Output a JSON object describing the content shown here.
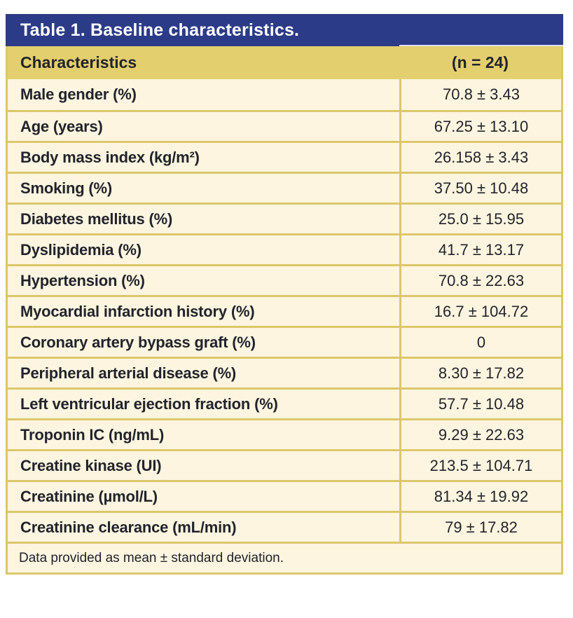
{
  "table": {
    "title": "Table 1. Baseline characteristics.",
    "header": {
      "characteristics_label": "Characteristics",
      "n_label": "(n = 24)"
    },
    "rows": [
      {
        "label": "Male gender (%)",
        "value": "70.8 ± 3.43"
      },
      {
        "label": "Age (years)",
        "value": "67.25 ± 13.10"
      },
      {
        "label": "Body mass index (kg/m²)",
        "value": "26.158 ± 3.43"
      },
      {
        "label": "Smoking (%)",
        "value": "37.50 ± 10.48"
      },
      {
        "label": "Diabetes mellitus (%)",
        "value": "25.0 ± 15.95"
      },
      {
        "label": "Dyslipidemia (%)",
        "value": "41.7 ± 13.17"
      },
      {
        "label": "Hypertension (%)",
        "value": "70.8 ± 22.63"
      },
      {
        "label": "Myocardial infarction history (%)",
        "value": "16.7 ± 104.72"
      },
      {
        "label": "Coronary artery bypass graft (%)",
        "value": "0"
      },
      {
        "label": "Peripheral arterial disease (%)",
        "value": "8.30 ± 17.82"
      },
      {
        "label": "Left ventricular ejection fraction (%)",
        "value": "57.7 ± 10.48"
      },
      {
        "label": "Troponin IC (ng/mL)",
        "value": "9.29 ± 22.63"
      },
      {
        "label": "Creatine kinase (UI)",
        "value": "213.5 ± 104.71"
      },
      {
        "label": "Creatinine (µmol/L)",
        "value": "81.34 ± 19.92"
      },
      {
        "label": "Creatinine clearance (mL/min)",
        "value": "79 ± 17.82"
      }
    ],
    "footnote": "Data provided as mean ± standard deviation."
  },
  "colors": {
    "header_blue": "#2c3b87",
    "gold": "#e4cf6e",
    "border_gold": "#dcc76a",
    "row_background": "#fdf5e0",
    "text_dark": "#21242c",
    "title_text": "#ffffff"
  }
}
